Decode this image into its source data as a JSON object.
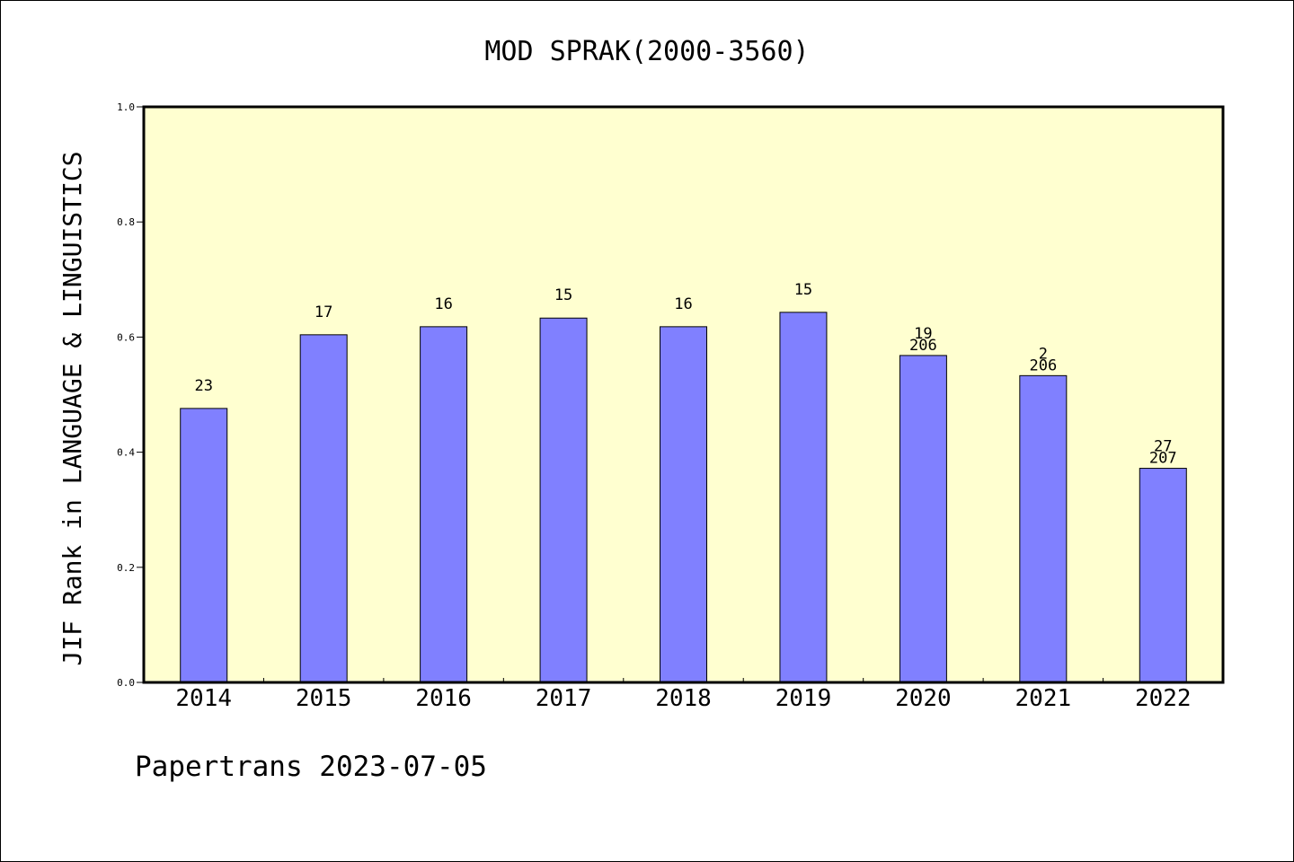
{
  "chart_data": {
    "type": "bar",
    "title": "MOD SPRAK(2000-3560)",
    "xlabel": "",
    "ylabel": "JIF Rank in LANGUAGE & LINGUISTICS",
    "ylim": [
      0,
      1.0
    ],
    "yticks": [
      "0.0",
      "0.2",
      "0.4",
      "0.6",
      "0.8",
      "1.0"
    ],
    "grid": false,
    "legend": "none",
    "categories": [
      "2014",
      "2015",
      "2016",
      "2017",
      "2018",
      "2019",
      "2020",
      "2021",
      "2022"
    ],
    "values": [
      0.476,
      0.604,
      0.618,
      0.633,
      0.618,
      0.643,
      0.568,
      0.533,
      0.372
    ],
    "labels": [
      [
        "23"
      ],
      [
        "17"
      ],
      [
        "16"
      ],
      [
        "15"
      ],
      [
        "16"
      ],
      [
        "15"
      ],
      [
        "19",
        "206"
      ],
      [
        "2",
        "206"
      ],
      [
        "27",
        "207"
      ]
    ],
    "colors": {
      "bar": "#8080ff",
      "plot_background": "#ffffd0"
    }
  },
  "footer": "Papertrans 2023-07-05"
}
